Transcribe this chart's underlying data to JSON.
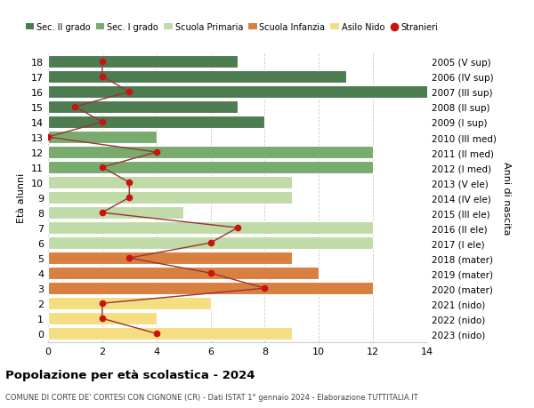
{
  "ages": [
    18,
    17,
    16,
    15,
    14,
    13,
    12,
    11,
    10,
    9,
    8,
    7,
    6,
    5,
    4,
    3,
    2,
    1,
    0
  ],
  "labels_right": [
    "2005 (V sup)",
    "2006 (IV sup)",
    "2007 (III sup)",
    "2008 (II sup)",
    "2009 (I sup)",
    "2010 (III med)",
    "2011 (II med)",
    "2012 (I med)",
    "2013 (V ele)",
    "2014 (IV ele)",
    "2015 (III ele)",
    "2016 (II ele)",
    "2017 (I ele)",
    "2018 (mater)",
    "2019 (mater)",
    "2020 (mater)",
    "2021 (nido)",
    "2022 (nido)",
    "2023 (nido)"
  ],
  "bar_values": [
    7,
    11,
    15,
    7,
    8,
    4,
    12,
    12,
    9,
    9,
    5,
    12,
    12,
    9,
    10,
    12,
    6,
    4,
    9
  ],
  "bar_colors": [
    "#4d7c51",
    "#4d7c51",
    "#4d7c51",
    "#4d7c51",
    "#4d7c51",
    "#7aab6e",
    "#7aab6e",
    "#7aab6e",
    "#c0dba8",
    "#c0dba8",
    "#c0dba8",
    "#c0dba8",
    "#c0dba8",
    "#d98040",
    "#d98040",
    "#d98040",
    "#f5de82",
    "#f5de82",
    "#f5de82"
  ],
  "stranieri_values": [
    2,
    2,
    3,
    1,
    2,
    0,
    4,
    2,
    3,
    3,
    2,
    7,
    6,
    3,
    6,
    8,
    2,
    2,
    4
  ],
  "title": "Popolazione per età scolastica - 2024",
  "subtitle": "COMUNE DI CORTE DE' CORTESI CON CIGNONE (CR) - Dati ISTAT 1° gennaio 2024 - Elaborazione TUTTITALIA.IT",
  "ylabel_left": "Età alunni",
  "ylabel_right": "Anni di nascita",
  "xlim": [
    0,
    14
  ],
  "xticks": [
    0,
    2,
    4,
    6,
    8,
    10,
    12,
    14
  ],
  "legend_items": [
    {
      "label": "Sec. II grado",
      "color": "#4d7c51"
    },
    {
      "label": "Sec. I grado",
      "color": "#7aab6e"
    },
    {
      "label": "Scuola Primaria",
      "color": "#c0dba8"
    },
    {
      "label": "Scuola Infanzia",
      "color": "#d98040"
    },
    {
      "label": "Asilo Nido",
      "color": "#f5de82"
    },
    {
      "label": "Stranieri",
      "color": "#cc1111"
    }
  ],
  "background_color": "#ffffff",
  "grid_color": "#cccccc",
  "bar_height": 0.85,
  "stranieri_line_color": "#993333",
  "stranieri_marker_color": "#cc1111"
}
